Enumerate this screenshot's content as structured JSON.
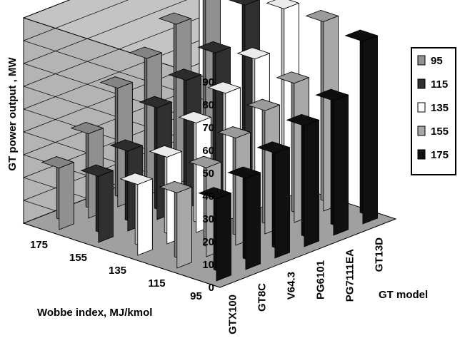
{
  "chart_data": {
    "type": "bar",
    "subtype": "3d-grouped",
    "title": "",
    "ylabel": "GT power output , MW",
    "xlabel": "GT model",
    "zlabel": "Wobbe index, MJ/kmol",
    "ylim": [
      0,
      90
    ],
    "yticks": [
      "0",
      "10",
      "20",
      "30",
      "40",
      "50",
      "60",
      "70",
      "80",
      "90"
    ],
    "categories": [
      "GTX100",
      "GT8C",
      "V64.3",
      "PG6101",
      "PG7111EA",
      "GT13D"
    ],
    "wobbe_labels": [
      "175",
      "155",
      "135",
      "115",
      "95"
    ],
    "grid": true,
    "legend_position": "right",
    "series": [
      {
        "name": "95",
        "color": "#909090",
        "values": [
          27,
          37,
          52,
          60,
          70,
          82
        ]
      },
      {
        "name": "115",
        "color": "#303030",
        "values": [
          29,
          35,
          49,
          56,
          63,
          79
        ]
      },
      {
        "name": "135",
        "color": "#ffffff",
        "values": [
          31,
          38,
          48,
          56,
          66,
          83
        ]
      },
      {
        "name": "155",
        "color": "#a8a8a8",
        "values": [
          33,
          39,
          47,
          54,
          61,
          83
        ]
      },
      {
        "name": "175",
        "color": "#101010",
        "values": [
          36,
          40,
          46,
          53,
          59,
          80
        ]
      }
    ]
  }
}
